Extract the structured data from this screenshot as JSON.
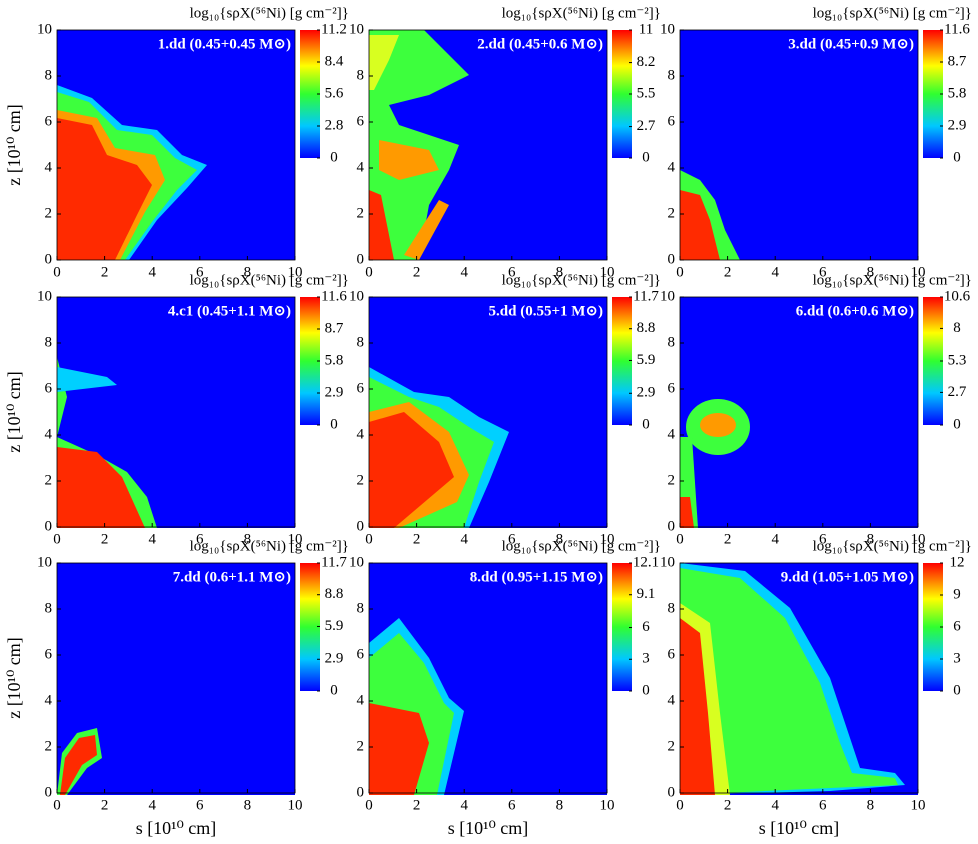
{
  "chart_data": [
    {
      "type": "heatmap",
      "title": "1.dd (0.45+0.45 M⊙)",
      "colorbar_label": "log₁₀{sρX(⁵⁶Ni) [g cm⁻²]}",
      "clim": [
        0,
        11.2
      ],
      "cticks": [
        0,
        2.8,
        5.6,
        8.4,
        11.2
      ],
      "xlim": [
        0,
        10
      ],
      "ylim": [
        0,
        10
      ],
      "xticks": [
        0,
        2,
        4,
        6,
        8,
        10
      ],
      "yticks": [
        0,
        2,
        4,
        6,
        8,
        10
      ],
      "ylabel": "z [10¹⁰ cm]"
    },
    {
      "type": "heatmap",
      "title": "2.dd (0.45+0.6 M⊙)",
      "colorbar_label": "log₁₀{sρX(⁵⁶Ni) [g cm⁻²]}",
      "clim": [
        0,
        11
      ],
      "cticks": [
        0,
        2.7,
        5.5,
        8.2,
        11
      ],
      "xlim": [
        0,
        10
      ],
      "ylim": [
        0,
        10
      ],
      "xticks": [
        0,
        2,
        4,
        6,
        8,
        10
      ],
      "yticks": [
        0,
        2,
        4,
        6,
        8,
        10
      ]
    },
    {
      "type": "heatmap",
      "title": "3.dd (0.45+0.9 M⊙)",
      "colorbar_label": "log₁₀{sρX(⁵⁶Ni) [g cm⁻²]}",
      "clim": [
        0,
        11.6
      ],
      "cticks": [
        0,
        2.9,
        5.8,
        8.7,
        11.6
      ],
      "xlim": [
        0,
        10
      ],
      "ylim": [
        0,
        10
      ],
      "xticks": [
        0,
        2,
        4,
        6,
        8,
        10
      ],
      "yticks": [
        0,
        2,
        4,
        6,
        8,
        10
      ]
    },
    {
      "type": "heatmap",
      "title": "4.c1 (0.45+1.1 M⊙)",
      "colorbar_label": "log₁₀{sρX(⁵⁶Ni) [g cm⁻²]}",
      "clim": [
        0,
        11.6
      ],
      "cticks": [
        0,
        2.9,
        5.8,
        8.7,
        11.6
      ],
      "xlim": [
        0,
        10
      ],
      "ylim": [
        0,
        10
      ],
      "xticks": [
        0,
        2,
        4,
        6,
        8,
        10
      ],
      "yticks": [
        0,
        2,
        4,
        6,
        8,
        10
      ],
      "ylabel": "z [10¹⁰ cm]"
    },
    {
      "type": "heatmap",
      "title": "5.dd (0.55+1 M⊙)",
      "colorbar_label": "log₁₀{sρX(⁵⁶Ni) [g cm⁻²]}",
      "clim": [
        0,
        11.7
      ],
      "cticks": [
        0,
        2.9,
        5.9,
        8.8,
        11.7
      ],
      "xlim": [
        0,
        10
      ],
      "ylim": [
        0,
        10
      ],
      "xticks": [
        0,
        2,
        4,
        6,
        8,
        10
      ],
      "yticks": [
        0,
        2,
        4,
        6,
        8,
        10
      ]
    },
    {
      "type": "heatmap",
      "title": "6.dd (0.6+0.6 M⊙)",
      "colorbar_label": "log₁₀{sρX(⁵⁶Ni) [g cm⁻²]}",
      "clim": [
        0,
        10.6
      ],
      "cticks": [
        0,
        2.7,
        5.3,
        8,
        10.6
      ],
      "xlim": [
        0,
        10
      ],
      "ylim": [
        0,
        10
      ],
      "xticks": [
        0,
        2,
        4,
        6,
        8,
        10
      ],
      "yticks": [
        0,
        2,
        4,
        6,
        8,
        10
      ]
    },
    {
      "type": "heatmap",
      "title": "7.dd (0.6+1.1 M⊙)",
      "colorbar_label": "log₁₀{sρX(⁵⁶Ni) [g cm⁻²]}",
      "clim": [
        0,
        11.7
      ],
      "cticks": [
        0,
        2.9,
        5.9,
        8.8,
        11.7
      ],
      "xlim": [
        0,
        10
      ],
      "ylim": [
        0,
        10
      ],
      "xticks": [
        0,
        2,
        4,
        6,
        8,
        10
      ],
      "yticks": [
        0,
        2,
        4,
        6,
        8,
        10
      ],
      "ylabel": "z [10¹⁰ cm]",
      "xlabel": "s [10¹⁰ cm]"
    },
    {
      "type": "heatmap",
      "title": "8.dd (0.95+1.15 M⊙)",
      "colorbar_label": "log₁₀{sρX(⁵⁶Ni) [g cm⁻²]}",
      "clim": [
        0,
        12.1
      ],
      "cticks": [
        0,
        3,
        6,
        9.1,
        12.1
      ],
      "xlim": [
        0,
        10
      ],
      "ylim": [
        0,
        10
      ],
      "xticks": [
        0,
        2,
        4,
        6,
        8,
        10
      ],
      "yticks": [
        0,
        2,
        4,
        6,
        8,
        10
      ],
      "xlabel": "s [10¹⁰ cm]"
    },
    {
      "type": "heatmap",
      "title": "9.dd (1.05+1.05 M⊙)",
      "colorbar_label": "log₁₀{sρX(⁵⁶Ni) [g cm⁻²]}",
      "clim": [
        0,
        12
      ],
      "cticks": [
        0,
        3,
        6,
        9,
        12
      ],
      "xlim": [
        0,
        10
      ],
      "ylim": [
        0,
        10
      ],
      "xticks": [
        0,
        2,
        4,
        6,
        8,
        10
      ],
      "yticks": [
        0,
        2,
        4,
        6,
        8,
        10
      ],
      "xlabel": "s [10¹⁰ cm]"
    }
  ]
}
